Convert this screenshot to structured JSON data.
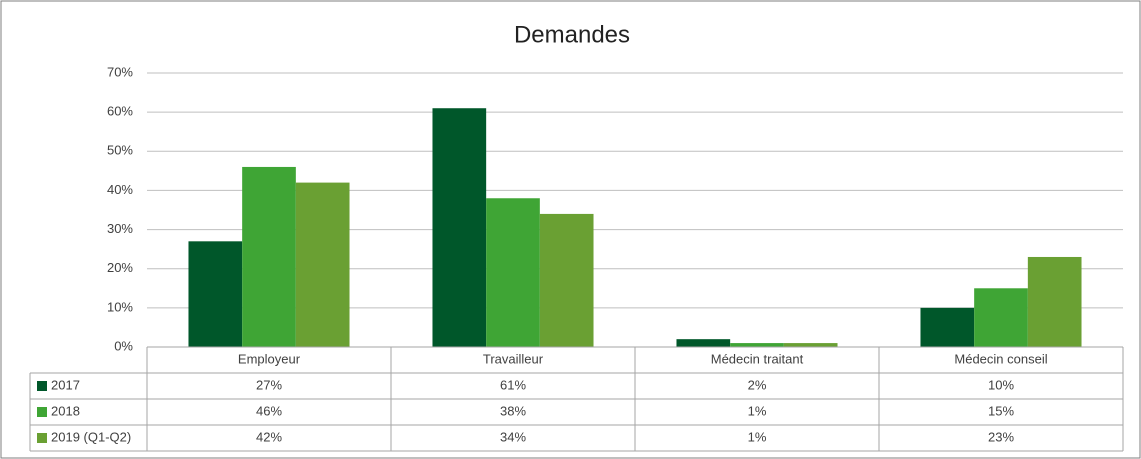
{
  "chart_data": {
    "type": "bar",
    "title": "Demandes",
    "categories": [
      "Employeur",
      "Travailleur",
      "Médecin traitant",
      "Médecin conseil"
    ],
    "series": [
      {
        "name": "2017",
        "color": "#00572a",
        "values": [
          27,
          61,
          2,
          10
        ],
        "value_labels": [
          "27%",
          "61%",
          "2%",
          "10%"
        ]
      },
      {
        "name": "2018",
        "color": "#3fa535",
        "values": [
          46,
          38,
          1,
          15
        ],
        "value_labels": [
          "46%",
          "38%",
          "1%",
          "15%"
        ]
      },
      {
        "name": "2019 (Q1-Q2)",
        "color": "#6aa033",
        "values": [
          42,
          34,
          1,
          23
        ],
        "value_labels": [
          "42%",
          "34%",
          "1%",
          "23%"
        ]
      }
    ],
    "ylim": [
      0,
      70
    ],
    "yticks": [
      {
        "value": 0,
        "label": "0%"
      },
      {
        "value": 10,
        "label": "10%"
      },
      {
        "value": 20,
        "label": "20%"
      },
      {
        "value": 30,
        "label": "30%"
      },
      {
        "value": 40,
        "label": "40%"
      },
      {
        "value": 50,
        "label": "50%"
      },
      {
        "value": 60,
        "label": "60%"
      },
      {
        "value": 70,
        "label": "70%"
      }
    ],
    "grid": true
  }
}
